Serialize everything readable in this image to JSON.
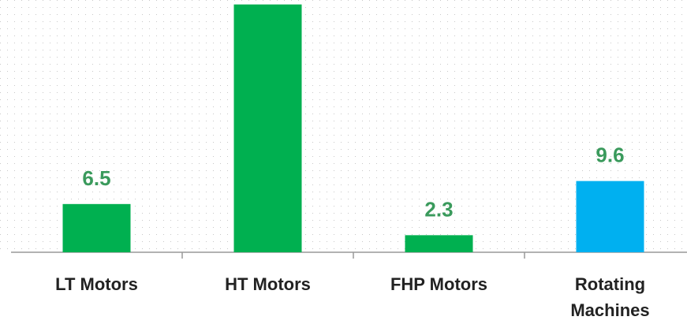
{
  "chart_data": {
    "type": "bar",
    "categories": [
      "LT Motors",
      "HT Motors",
      "FHP Motors",
      "Rotating Machines"
    ],
    "values": [
      6.5,
      33.4,
      2.3,
      9.6
    ],
    "value_labels": [
      "6.5",
      null,
      "2.3",
      "9.6"
    ],
    "colors": [
      "#00b050",
      "#00b050",
      "#00b050",
      "#00b0f0"
    ],
    "ylim": [
      0,
      34
    ],
    "grid": true
  }
}
